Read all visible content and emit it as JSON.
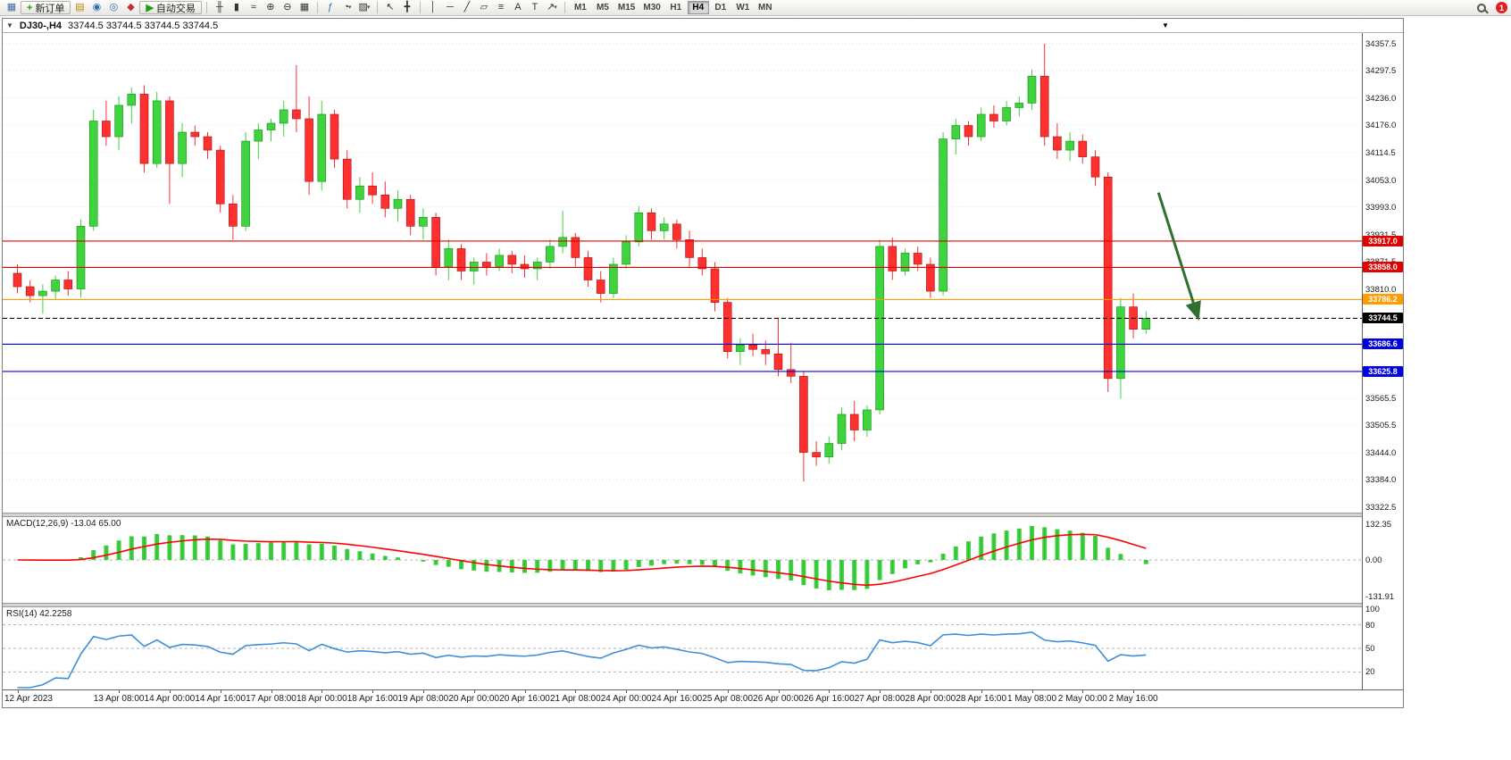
{
  "toolbar": {
    "items": [
      {
        "type": "icon",
        "name": "new-chart-icon",
        "glyph": "▦",
        "color": "#3a6ea5"
      },
      {
        "type": "button",
        "name": "new-order-button",
        "glyph": "+",
        "glyph_color": "#18a018",
        "label": "新订单"
      },
      {
        "type": "icon",
        "name": "chart-profiles-icon",
        "glyph": "▤",
        "color": "#b8860b"
      },
      {
        "type": "icon",
        "name": "market-watch-icon",
        "glyph": "◉",
        "color": "#2b6cb0"
      },
      {
        "type": "icon",
        "name": "data-window-icon",
        "glyph": "◎",
        "color": "#2b6cb0"
      },
      {
        "type": "icon",
        "name": "terminal-icon",
        "glyph": "◆",
        "color": "#c03030"
      },
      {
        "type": "button",
        "name": "autotrading-button",
        "glyph": "▶",
        "glyph_color": "#18a018",
        "label": "自动交易"
      },
      {
        "type": "sep"
      },
      {
        "type": "icon",
        "name": "ohlc-bars-icon",
        "glyph": "╫",
        "color": "#333333"
      },
      {
        "type": "icon",
        "name": "candlestick-chart-icon",
        "glyph": "▮",
        "color": "#333333"
      },
      {
        "type": "icon",
        "name": "line-chart-icon",
        "glyph": "≈",
        "color": "#333333"
      },
      {
        "type": "icon",
        "name": "zoom-in-icon",
        "glyph": "⊕",
        "color": "#333333"
      },
      {
        "type": "icon",
        "name": "zoom-out-icon",
        "glyph": "⊖",
        "color": "#333333"
      },
      {
        "type": "icon",
        "name": "tile-windows-icon",
        "glyph": "▦",
        "color": "#333333"
      },
      {
        "type": "sep"
      },
      {
        "type": "icon",
        "name": "indicators-icon",
        "glyph": "ƒ",
        "color": "#2b6cb0"
      },
      {
        "type": "icon",
        "name": "period-icon",
        "glyph": "◔",
        "color": "#333333",
        "caret": true
      },
      {
        "type": "icon",
        "name": "template-icon",
        "glyph": "▨",
        "color": "#333333",
        "caret": true
      },
      {
        "type": "sep"
      },
      {
        "type": "icon",
        "name": "cursor-icon",
        "glyph": "↖",
        "color": "#333333"
      },
      {
        "type": "icon",
        "name": "crosshair-icon",
        "glyph": "╋",
        "color": "#333333"
      },
      {
        "type": "sep"
      },
      {
        "type": "icon",
        "name": "vertical-line-icon",
        "glyph": "│",
        "color": "#333333"
      },
      {
        "type": "icon",
        "name": "horizontal-line-icon",
        "glyph": "─",
        "color": "#333333"
      },
      {
        "type": "icon",
        "name": "trendline-icon",
        "glyph": "╱",
        "color": "#333333"
      },
      {
        "type": "icon",
        "name": "channel-icon",
        "glyph": "▱",
        "color": "#333333"
      },
      {
        "type": "icon",
        "name": "fibonacci-icon",
        "glyph": "≡",
        "color": "#333333"
      },
      {
        "type": "icon",
        "name": "text-icon",
        "glyph": "A",
        "color": "#333333"
      },
      {
        "type": "icon",
        "name": "text-label-icon",
        "glyph": "T",
        "color": "#333333"
      },
      {
        "type": "icon",
        "name": "arrows-icon",
        "glyph": "↗",
        "color": "#333333",
        "caret": true
      },
      {
        "type": "sep"
      },
      {
        "type": "timeframes"
      },
      {
        "type": "spacer"
      },
      {
        "type": "icon",
        "name": "search-icon",
        "css": "magnifier"
      },
      {
        "type": "badge",
        "name": "notification-badge"
      }
    ],
    "timeframes": [
      "M1",
      "M5",
      "M15",
      "M30",
      "H1",
      "H4",
      "D1",
      "W1",
      "MN"
    ],
    "active_timeframe": "H4",
    "notification_count": "1"
  },
  "chart": {
    "symbol_title": "DJ30-,H4",
    "ohlc_text": "33744.5 33744.5 33744.5 33744.5",
    "shift_marker": "▼",
    "oneclick_toggle": "▼",
    "axis_labels": [
      "34357.5",
      "34297.5",
      "34236.0",
      "34176.0",
      "34114.5",
      "34053.0",
      "33993.0",
      "33931.5",
      "33871.5",
      "33810.0",
      "33565.5",
      "33505.5",
      "33444.0",
      "33384.0",
      "33322.5"
    ],
    "lines": [
      {
        "price": 33917.0,
        "label": "33917.0",
        "color": "#e00000",
        "style": "solid",
        "role": "resistance"
      },
      {
        "price": 33858.0,
        "label": "33858.0",
        "color": "#e00000",
        "style": "solid",
        "role": "resistance"
      },
      {
        "price": 33786.2,
        "label": "33786.2",
        "color": "#ff9c00",
        "style": "solid",
        "role": "pivot"
      },
      {
        "price": 33744.5,
        "label": "33744.5",
        "color": "#000000",
        "style": "dashed",
        "role": "current-price"
      },
      {
        "price": 33686.6,
        "label": "33686.6",
        "color": "#0000dd",
        "style": "solid",
        "role": "support"
      },
      {
        "price": 33625.8,
        "label": "33625.8",
        "color": "#0000dd",
        "style": "solid",
        "role": "support"
      }
    ]
  },
  "macd": {
    "label": "MACD(12,26,9) -13.04 65.00",
    "axis_labels": [
      "132.35",
      "0.00",
      "-131.91"
    ],
    "fast": 12,
    "slow": 26,
    "signal_period": 9,
    "current_macd": -13.04,
    "current_signal": 65.0
  },
  "rsi": {
    "label": "RSI(14) 42.2258",
    "axis_labels": [
      "100",
      "80",
      "50",
      "20"
    ],
    "levels": [
      80,
      50,
      20
    ],
    "period": 14,
    "current": 42.2258
  },
  "time_axis": [
    {
      "label": "12 Apr 2023",
      "bar": 0
    },
    {
      "label": "13 Apr 08:00",
      "bar": 8
    },
    {
      "label": "14 Apr 00:00",
      "bar": 12
    },
    {
      "label": "14 Apr 16:00",
      "bar": 16
    },
    {
      "label": "17 Apr 08:00",
      "bar": 20
    },
    {
      "label": "18 Apr 00:00",
      "bar": 24
    },
    {
      "label": "18 Apr 16:00",
      "bar": 28
    },
    {
      "label": "19 Apr 08:00",
      "bar": 32
    },
    {
      "label": "20 Apr 00:00",
      "bar": 36
    },
    {
      "label": "20 Apr 16:00",
      "bar": 40
    },
    {
      "label": "21 Apr 08:00",
      "bar": 44
    },
    {
      "label": "24 Apr 00:00",
      "bar": 48
    },
    {
      "label": "24 Apr 16:00",
      "bar": 52
    },
    {
      "label": "25 Apr 08:00",
      "bar": 56
    },
    {
      "label": "26 Apr 00:00",
      "bar": 60
    },
    {
      "label": "26 Apr 16:00",
      "bar": 64
    },
    {
      "label": "27 Apr 08:00",
      "bar": 68
    },
    {
      "label": "28 Apr 00:00",
      "bar": 72
    },
    {
      "label": "28 Apr 16:00",
      "bar": 76
    },
    {
      "label": "1 May 08:00",
      "bar": 80
    },
    {
      "label": "2 May 00:00",
      "bar": 84
    },
    {
      "label": "2 May 16:00",
      "bar": 88
    }
  ],
  "chart_data": {
    "type": "candlestick",
    "symbol": "DJ30-",
    "timeframe": "H4",
    "price_range": [
      33322.5,
      34357.5
    ],
    "colors": {
      "up": "#3fd33f",
      "up_border": "#0f8f0f",
      "down": "#ff3030",
      "down_border": "#a51212",
      "macd_histogram": "#3fd33f",
      "macd_histogram_border": "#128a12",
      "macd_signal": "#ff0000",
      "rsi_line": "#3d8fd9",
      "grid": "#e2e2e2",
      "level_dash": "#b0b0b0"
    },
    "candles": [
      [
        33845,
        33865,
        33800,
        33815
      ],
      [
        33815,
        33830,
        33780,
        33795
      ],
      [
        33795,
        33820,
        33755,
        33805
      ],
      [
        33805,
        33840,
        33785,
        33830
      ],
      [
        33830,
        33850,
        33795,
        33810
      ],
      [
        33810,
        33965,
        33790,
        33950
      ],
      [
        33950,
        34210,
        33940,
        34185
      ],
      [
        34185,
        34230,
        34130,
        34150
      ],
      [
        34150,
        34240,
        34120,
        34220
      ],
      [
        34220,
        34260,
        34180,
        34245
      ],
      [
        34245,
        34265,
        34070,
        34090
      ],
      [
        34090,
        34250,
        34080,
        34230
      ],
      [
        34230,
        34240,
        34000,
        34090
      ],
      [
        34090,
        34180,
        34060,
        34160
      ],
      [
        34160,
        34175,
        34130,
        34150
      ],
      [
        34150,
        34160,
        34100,
        34120
      ],
      [
        34120,
        34130,
        33980,
        34000
      ],
      [
        34000,
        34020,
        33920,
        33950
      ],
      [
        33950,
        34160,
        33940,
        34140
      ],
      [
        34140,
        34180,
        34100,
        34165
      ],
      [
        34165,
        34190,
        34140,
        34180
      ],
      [
        34180,
        34230,
        34150,
        34210
      ],
      [
        34210,
        34310,
        34160,
        34190
      ],
      [
        34190,
        34240,
        34020,
        34050
      ],
      [
        34050,
        34230,
        34030,
        34200
      ],
      [
        34200,
        34210,
        34080,
        34100
      ],
      [
        34100,
        34120,
        33990,
        34010
      ],
      [
        34010,
        34060,
        33980,
        34040
      ],
      [
        34040,
        34070,
        34000,
        34020
      ],
      [
        34020,
        34050,
        33970,
        33990
      ],
      [
        33990,
        34030,
        33960,
        34010
      ],
      [
        34010,
        34020,
        33930,
        33950
      ],
      [
        33950,
        33990,
        33920,
        33970
      ],
      [
        33970,
        33980,
        33840,
        33860
      ],
      [
        33860,
        33920,
        33830,
        33900
      ],
      [
        33900,
        33910,
        33830,
        33850
      ],
      [
        33850,
        33880,
        33820,
        33870
      ],
      [
        33870,
        33890,
        33840,
        33860
      ],
      [
        33860,
        33900,
        33850,
        33885
      ],
      [
        33885,
        33895,
        33845,
        33865
      ],
      [
        33865,
        33885,
        33835,
        33855
      ],
      [
        33855,
        33880,
        33830,
        33870
      ],
      [
        33870,
        33920,
        33855,
        33905
      ],
      [
        33905,
        33985,
        33890,
        33925
      ],
      [
        33925,
        33935,
        33860,
        33880
      ],
      [
        33880,
        33895,
        33815,
        33830
      ],
      [
        33830,
        33850,
        33780,
        33800
      ],
      [
        33800,
        33880,
        33790,
        33865
      ],
      [
        33865,
        33930,
        33855,
        33915
      ],
      [
        33915,
        33995,
        33905,
        33980
      ],
      [
        33980,
        33990,
        33920,
        33940
      ],
      [
        33940,
        33970,
        33920,
        33955
      ],
      [
        33955,
        33965,
        33900,
        33920
      ],
      [
        33920,
        33940,
        33860,
        33880
      ],
      [
        33880,
        33900,
        33840,
        33855
      ],
      [
        33855,
        33870,
        33760,
        33780
      ],
      [
        33780,
        33790,
        33655,
        33670
      ],
      [
        33670,
        33700,
        33640,
        33685
      ],
      [
        33685,
        33710,
        33660,
        33675
      ],
      [
        33675,
        33695,
        33640,
        33665
      ],
      [
        33665,
        33745,
        33615,
        33630
      ],
      [
        33630,
        33690,
        33600,
        33615
      ],
      [
        33615,
        33625,
        33380,
        33445
      ],
      [
        33445,
        33470,
        33415,
        33435
      ],
      [
        33435,
        33480,
        33420,
        33465
      ],
      [
        33465,
        33545,
        33450,
        33530
      ],
      [
        33530,
        33560,
        33470,
        33495
      ],
      [
        33495,
        33550,
        33480,
        33540
      ],
      [
        33540,
        33920,
        33530,
        33905
      ],
      [
        33905,
        33925,
        33830,
        33850
      ],
      [
        33850,
        33900,
        33840,
        33890
      ],
      [
        33890,
        33905,
        33850,
        33865
      ],
      [
        33865,
        33880,
        33790,
        33805
      ],
      [
        33805,
        34160,
        33795,
        34145
      ],
      [
        34145,
        34190,
        34110,
        34175
      ],
      [
        34175,
        34185,
        34130,
        34150
      ],
      [
        34150,
        34215,
        34140,
        34200
      ],
      [
        34200,
        34220,
        34170,
        34185
      ],
      [
        34185,
        34230,
        34175,
        34215
      ],
      [
        34215,
        34240,
        34195,
        34225
      ],
      [
        34225,
        34300,
        34210,
        34285
      ],
      [
        34285,
        34357.5,
        34130,
        34150
      ],
      [
        34150,
        34180,
        34100,
        34120
      ],
      [
        34120,
        34160,
        34095,
        34140
      ],
      [
        34140,
        34155,
        34090,
        34105
      ],
      [
        34105,
        34120,
        34040,
        34060
      ],
      [
        34060,
        34070,
        33580,
        33610
      ],
      [
        33610,
        33790,
        33565,
        33770
      ],
      [
        33770,
        33800,
        33700,
        33720
      ],
      [
        33720,
        33760,
        33710,
        33744.5
      ]
    ],
    "horizontal_lines": [
      33917.0,
      33858.0,
      33786.2,
      33744.5,
      33686.6,
      33625.8
    ],
    "annotations": [
      {
        "type": "arrow",
        "from": {
          "bar": 90.3,
          "price": 34025
        },
        "to": {
          "bar": 93.4,
          "price": 33748
        },
        "color": "#2f7030"
      }
    ]
  }
}
